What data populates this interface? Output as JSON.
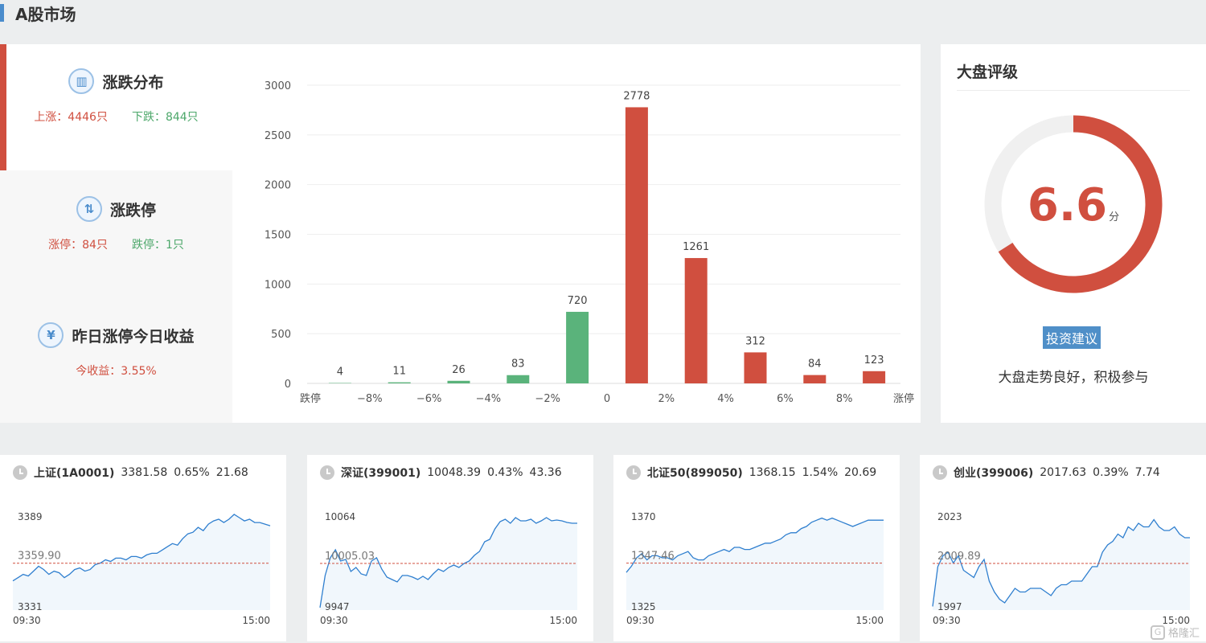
{
  "page_title": "A股市场",
  "sidebar": {
    "items": [
      {
        "icon": "bar-chart-icon",
        "title": "涨跌分布",
        "left": "上涨：4446只",
        "right": "下跌：844只"
      },
      {
        "icon": "up-down-arrows-icon",
        "title": "涨跌停",
        "left": "涨停：84只",
        "right": "跌停：1只"
      },
      {
        "icon": "yen-icon",
        "title": "昨日涨停今日收益",
        "left": "今收益：3.55%",
        "right": ""
      }
    ]
  },
  "chart_data": {
    "type": "bar",
    "categories": [
      "跌停",
      "−8%",
      "−6%",
      "−4%",
      "−2%",
      "0",
      "2%",
      "4%",
      "6%",
      "8%",
      "涨停"
    ],
    "bars": [
      {
        "label": "4",
        "value": 4,
        "color": "#5ab37b"
      },
      {
        "label": "11",
        "value": 11,
        "color": "#5ab37b"
      },
      {
        "label": "26",
        "value": 26,
        "color": "#5ab37b"
      },
      {
        "label": "83",
        "value": 83,
        "color": "#5ab37b"
      },
      {
        "label": "720",
        "value": 720,
        "color": "#5ab37b"
      },
      {
        "label": "2778",
        "value": 2778,
        "color": "#d04f3f"
      },
      {
        "label": "1261",
        "value": 1261,
        "color": "#d04f3f"
      },
      {
        "label": "312",
        "value": 312,
        "color": "#d04f3f"
      },
      {
        "label": "84",
        "value": 84,
        "color": "#d04f3f"
      },
      {
        "label": "123",
        "value": 123,
        "color": "#d04f3f"
      }
    ],
    "yticks": [
      0,
      500,
      1000,
      1500,
      2000,
      2500,
      3000
    ],
    "ylim": [
      0,
      3000
    ],
    "grid": true
  },
  "rating": {
    "title": "大盘评级",
    "score": "6.6",
    "score_value": 6.6,
    "score_max": 10,
    "unit": "分",
    "button": "投资建议",
    "advice": "大盘走势良好，积极参与",
    "accent": "#d04f3f"
  },
  "indices": [
    {
      "name": "上证(1A0001)",
      "price": "3381.58",
      "pct": "0.65%",
      "chg": "21.68",
      "high": "3389",
      "base": "3359.90",
      "low": "3331",
      "start": "09:30",
      "end": "15:00",
      "series": [
        3349,
        3351,
        3353,
        3352,
        3355,
        3358,
        3356,
        3353,
        3355,
        3354,
        3351,
        3353,
        3356,
        3357,
        3355,
        3356,
        3359,
        3360,
        3362,
        3361,
        3363,
        3363,
        3362,
        3364,
        3364,
        3363,
        3365,
        3366,
        3366,
        3368,
        3370,
        3372,
        3371,
        3375,
        3378,
        3379,
        3382,
        3380,
        3384,
        3386,
        3387,
        3385,
        3387,
        3390,
        3388,
        3386,
        3387,
        3385,
        3385,
        3384,
        3383
      ]
    },
    {
      "name": "深证(399001)",
      "price": "10048.39",
      "pct": "0.43%",
      "chg": "43.36",
      "high": "10064",
      "base": "10005.03",
      "low": "9947",
      "start": "09:30",
      "end": "15:00",
      "series": [
        9950,
        9990,
        10012,
        10022,
        10008,
        10010,
        9995,
        10000,
        9992,
        9990,
        10008,
        10012,
        9998,
        9988,
        9985,
        9982,
        9990,
        9990,
        9988,
        9985,
        9989,
        9985,
        9992,
        9998,
        9995,
        10000,
        10003,
        10000,
        10005,
        10008,
        10015,
        10020,
        10032,
        10035,
        10048,
        10057,
        10060,
        10055,
        10062,
        10058,
        10058,
        10060,
        10055,
        10058,
        10062,
        10058,
        10059,
        10058,
        10056,
        10055,
        10055
      ]
    },
    {
      "name": "北证50(899050)",
      "price": "1368.15",
      "pct": "1.54%",
      "chg": "20.69",
      "high": "1370",
      "base": "1347.46",
      "low": "1325",
      "start": "09:30",
      "end": "15:00",
      "series": [
        1343,
        1346,
        1350,
        1352,
        1349,
        1351,
        1351,
        1350,
        1350,
        1349,
        1351,
        1352,
        1353,
        1350,
        1349,
        1349,
        1351,
        1352,
        1353,
        1354,
        1353,
        1355,
        1355,
        1354,
        1354,
        1355,
        1356,
        1357,
        1357,
        1358,
        1359,
        1361,
        1362,
        1362,
        1364,
        1365,
        1367,
        1368,
        1369,
        1368,
        1369,
        1368,
        1367,
        1366,
        1365,
        1366,
        1367,
        1368,
        1368,
        1368,
        1368
      ]
    },
    {
      "name": "创业(399006)",
      "price": "2017.63",
      "pct": "0.39%",
      "chg": "7.74",
      "high": "2023",
      "base": "2009.89",
      "low": "1997",
      "start": "09:30",
      "end": "15:00",
      "series": [
        1998,
        2009,
        2012,
        2013,
        2010,
        2012,
        2008,
        2007,
        2006,
        2009,
        2011,
        2005,
        2002,
        2000,
        1999,
        2001,
        2003,
        2002,
        2002,
        2003,
        2003,
        2003,
        2002,
        2001,
        2003,
        2004,
        2004,
        2005,
        2005,
        2005,
        2007,
        2009,
        2009,
        2013,
        2015,
        2016,
        2018,
        2017,
        2020,
        2019,
        2021,
        2020,
        2020,
        2022,
        2020,
        2019,
        2019,
        2020,
        2018,
        2017,
        2017
      ]
    }
  ],
  "watermark": "格隆汇"
}
